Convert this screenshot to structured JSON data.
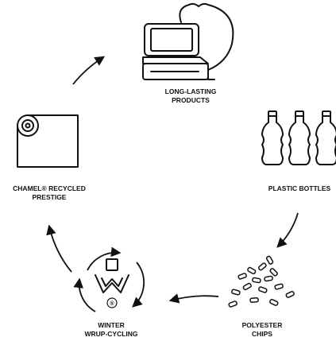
{
  "nodes": [
    {
      "label": [
        "LONG-LASTING",
        "PRODUCTS"
      ]
    },
    {
      "label": [
        "PLASTIC BOTTLES"
      ]
    },
    {
      "label": [
        "POLYESTER",
        "CHIPS"
      ]
    },
    {
      "label": [
        "WINTER",
        "WRUP-CYCLING"
      ],
      "icon_mark": "®"
    },
    {
      "label": [
        "CHAMEL® RECYCLED",
        "PRESTIGE"
      ]
    }
  ]
}
